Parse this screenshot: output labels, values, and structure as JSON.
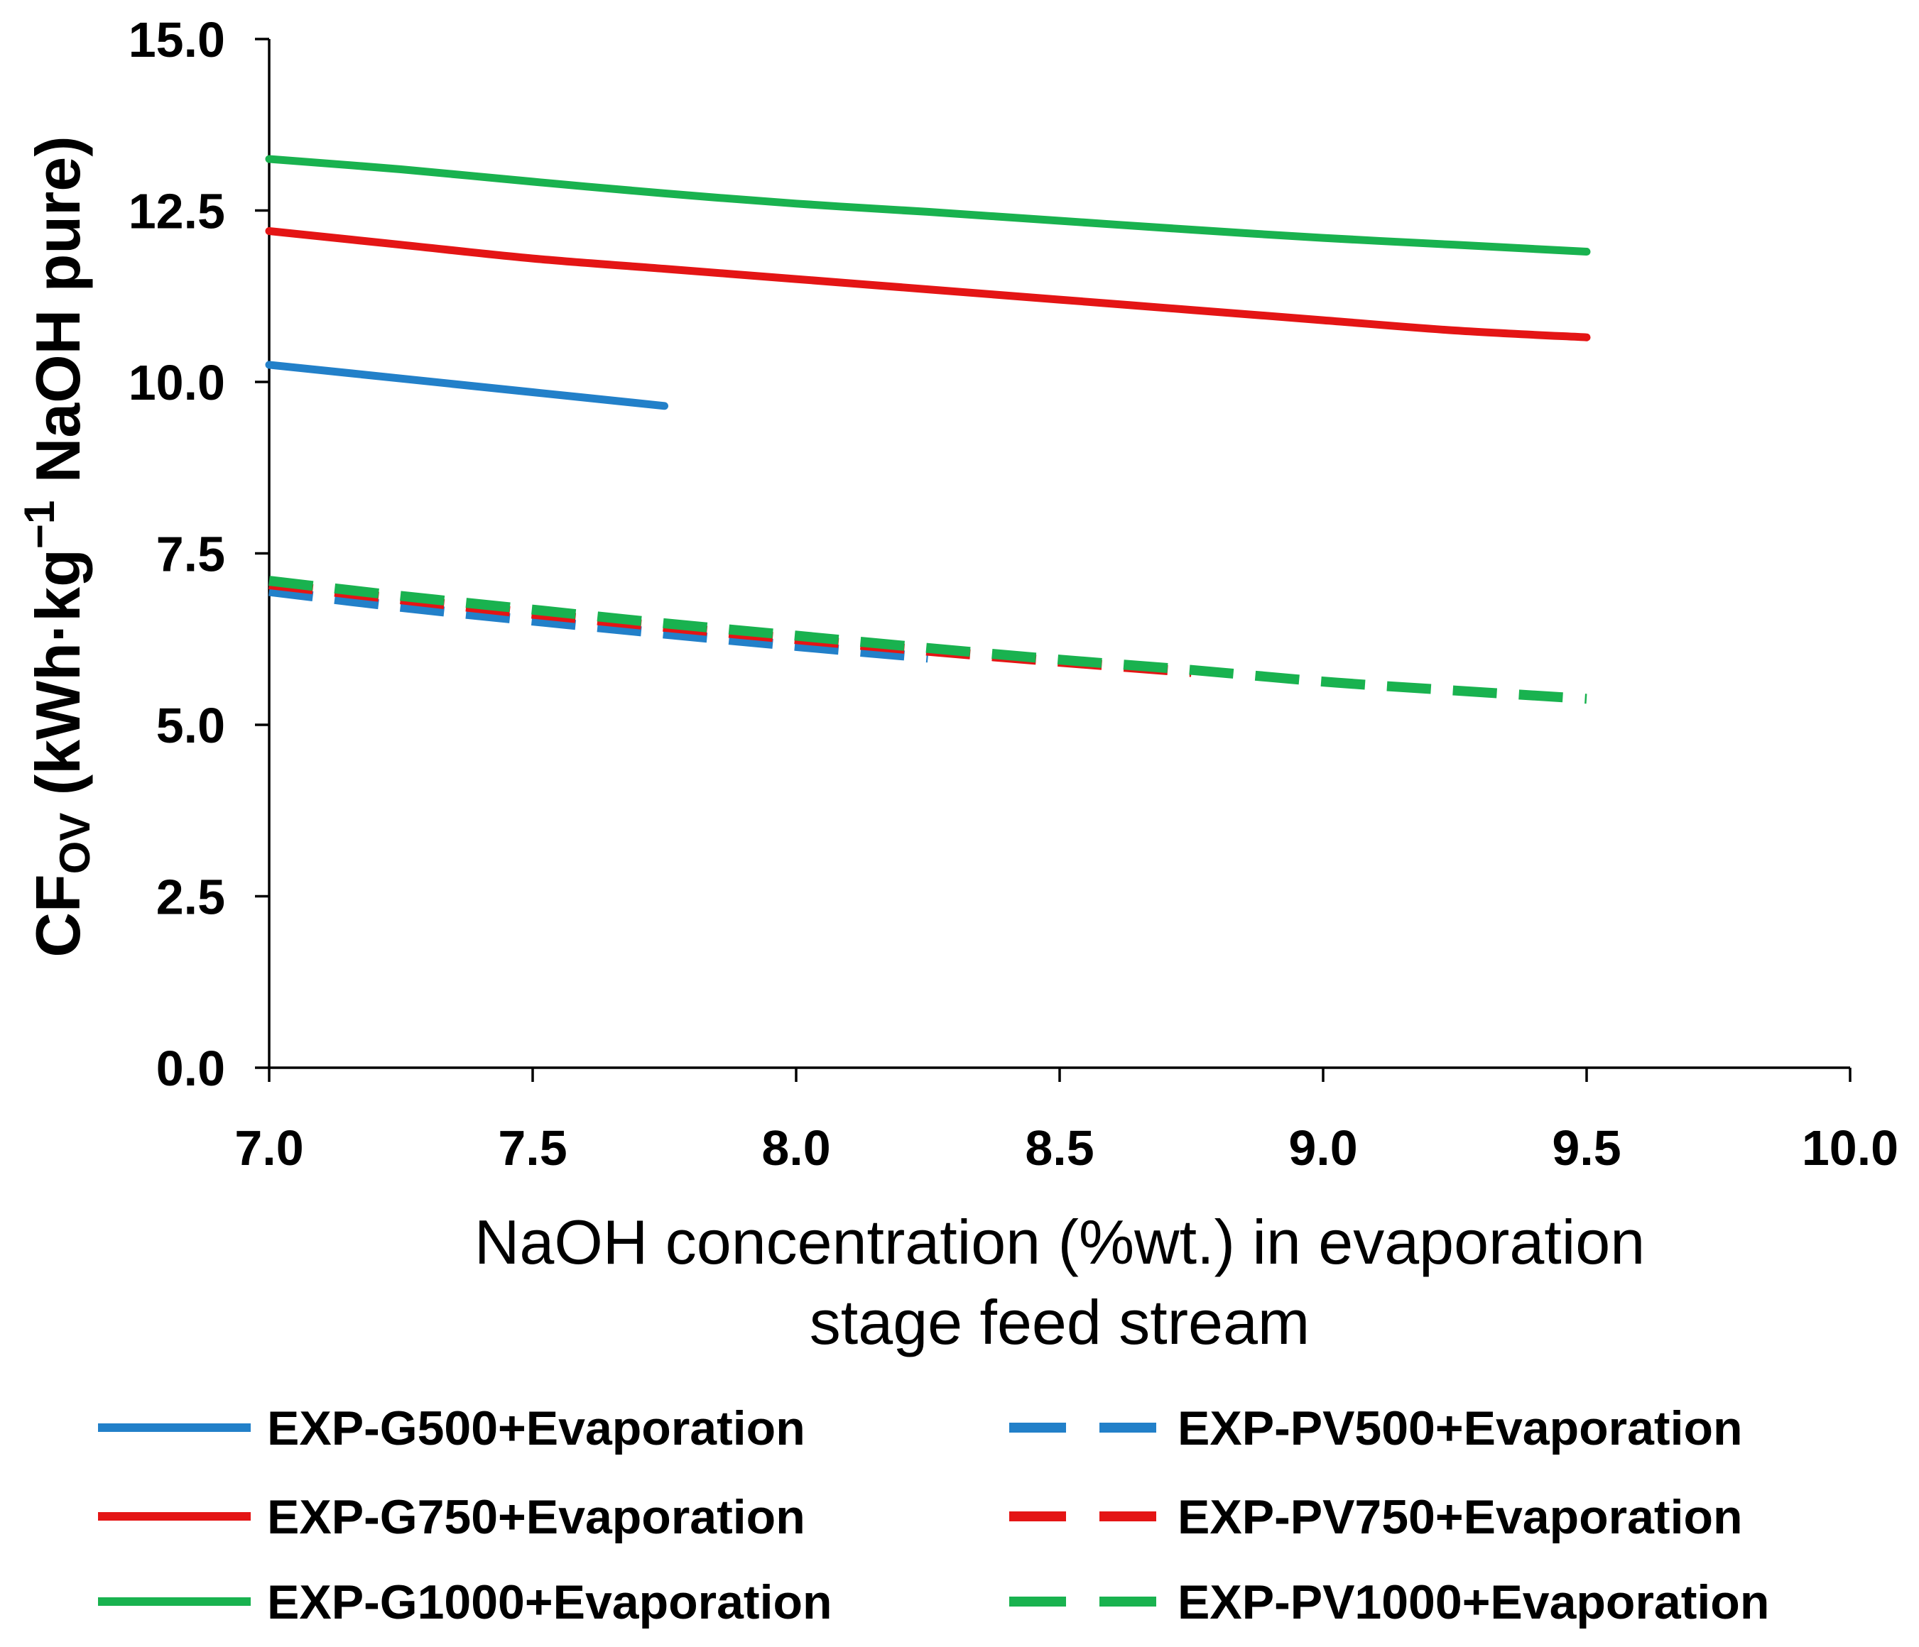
{
  "chart_data": {
    "type": "line",
    "xlabel": {
      "line1": "NaOH concentration (%wt.) in evaporation",
      "line2": "stage feed stream"
    },
    "ylabel": {
      "prefix": "CF",
      "sub": "OV",
      "middle": " (kWh·kg",
      "sup": "−1",
      "suffix": " NaOH pure)"
    },
    "xlim": [
      7,
      10
    ],
    "ylim": [
      0,
      15
    ],
    "xticks": [
      "7.0",
      "7.5",
      "8.0",
      "8.5",
      "9.0",
      "9.5",
      "10.0"
    ],
    "yticks": [
      "0.0",
      "2.5",
      "5.0",
      "7.5",
      "10.0",
      "12.5",
      "15.0"
    ],
    "grid": false,
    "legend": "bottom",
    "series": [
      {
        "name": "EXP-G500+Evaporation",
        "style": "solid",
        "color": "#2280C9",
        "x": [
          7.0,
          7.25,
          7.5,
          7.75
        ],
        "y": [
          10.25,
          10.05,
          9.85,
          9.65
        ]
      },
      {
        "name": "EXP-G750+Evaporation",
        "style": "solid",
        "color": "#E41515",
        "x": [
          7.0,
          7.25,
          7.5,
          7.75,
          8.0,
          8.25,
          8.5,
          8.75,
          9.0,
          9.25,
          9.5
        ],
        "y": [
          12.2,
          12.0,
          11.8,
          11.65,
          11.5,
          11.35,
          11.2,
          11.05,
          10.9,
          10.75,
          10.65
        ]
      },
      {
        "name": "EXP-G1000+Evaporation",
        "style": "solid",
        "color": "#19B24F",
        "x": [
          7.0,
          7.25,
          7.5,
          7.75,
          8.0,
          8.25,
          8.5,
          8.75,
          9.0,
          9.25,
          9.5
        ],
        "y": [
          13.25,
          13.1,
          12.92,
          12.75,
          12.6,
          12.48,
          12.35,
          12.22,
          12.1,
          12.0,
          11.9
        ]
      },
      {
        "name": "EXP-PV500+Evaporation",
        "style": "dashed",
        "color": "#2280C9",
        "x": [
          7.0,
          7.25,
          7.5,
          7.75,
          8.0,
          8.25
        ],
        "y": [
          6.95,
          6.72,
          6.52,
          6.33,
          6.15,
          5.98
        ]
      },
      {
        "name": "EXP-PV750+Evaporation",
        "style": "dashed",
        "color": "#E41515",
        "x": [
          7.0,
          7.25,
          7.5,
          7.75,
          8.0,
          8.25,
          8.5,
          8.75
        ],
        "y": [
          7.05,
          6.83,
          6.62,
          6.43,
          6.25,
          6.08,
          5.92,
          5.77
        ]
      },
      {
        "name": "EXP-PV1000+Evaporation",
        "style": "dashed",
        "color": "#19B24F",
        "x": [
          7.0,
          7.25,
          7.5,
          7.75,
          8.0,
          8.25,
          8.5,
          8.75,
          9.0,
          9.25,
          9.5
        ],
        "y": [
          7.1,
          6.88,
          6.68,
          6.48,
          6.3,
          6.12,
          5.95,
          5.8,
          5.63,
          5.5,
          5.38
        ]
      }
    ]
  }
}
